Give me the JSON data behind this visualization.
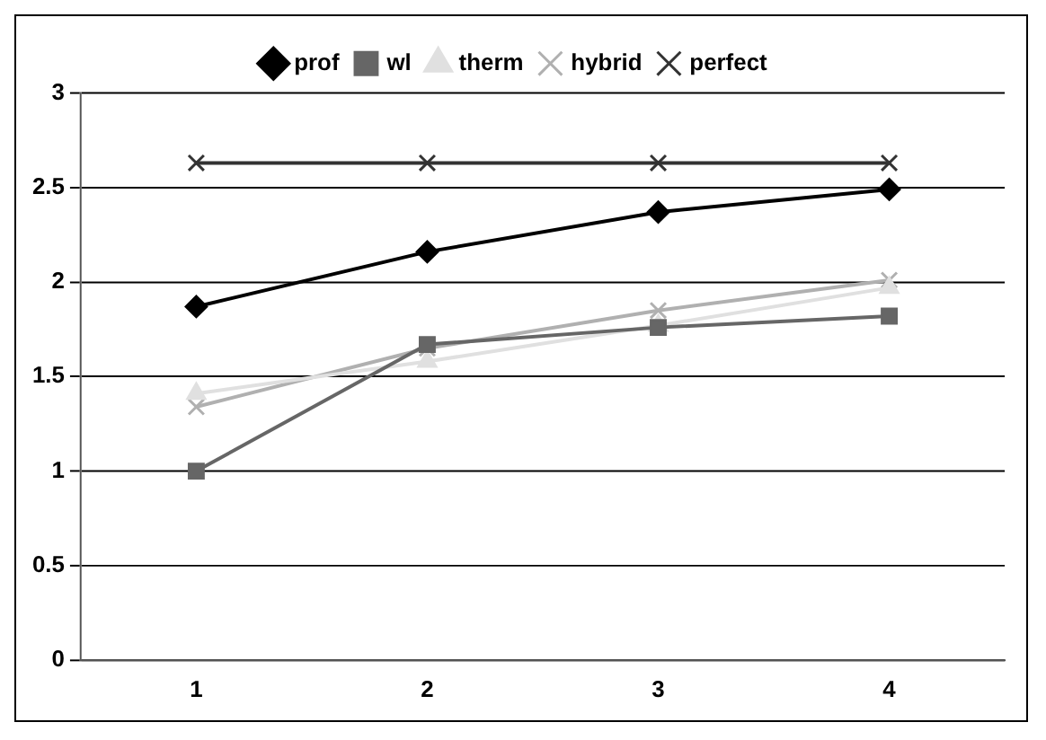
{
  "chart_data": {
    "type": "line",
    "categories": [
      "1",
      "2",
      "3",
      "4"
    ],
    "series": [
      {
        "name": "prof",
        "color": "#000000",
        "marker": "diamond",
        "values": [
          1.87,
          2.16,
          2.37,
          2.49
        ]
      },
      {
        "name": "wl",
        "color": "#666666",
        "marker": "square",
        "values": [
          1.0,
          1.67,
          1.76,
          1.82
        ]
      },
      {
        "name": "therm",
        "color": "#e0e0e0",
        "marker": "triangle",
        "values": [
          1.41,
          1.58,
          1.77,
          1.97
        ]
      },
      {
        "name": "hybrid",
        "color": "#b0b0b0",
        "marker": "cross",
        "values": [
          1.34,
          1.65,
          1.85,
          2.01
        ]
      },
      {
        "name": "perfect",
        "color": "#333333",
        "marker": "cross",
        "values": [
          2.63,
          2.63,
          2.63,
          2.63
        ]
      }
    ],
    "ylim": [
      0,
      3
    ],
    "yticks": [
      0,
      0.5,
      1,
      1.5,
      2,
      2.5,
      3
    ],
    "grid": "y",
    "legend": "top"
  }
}
